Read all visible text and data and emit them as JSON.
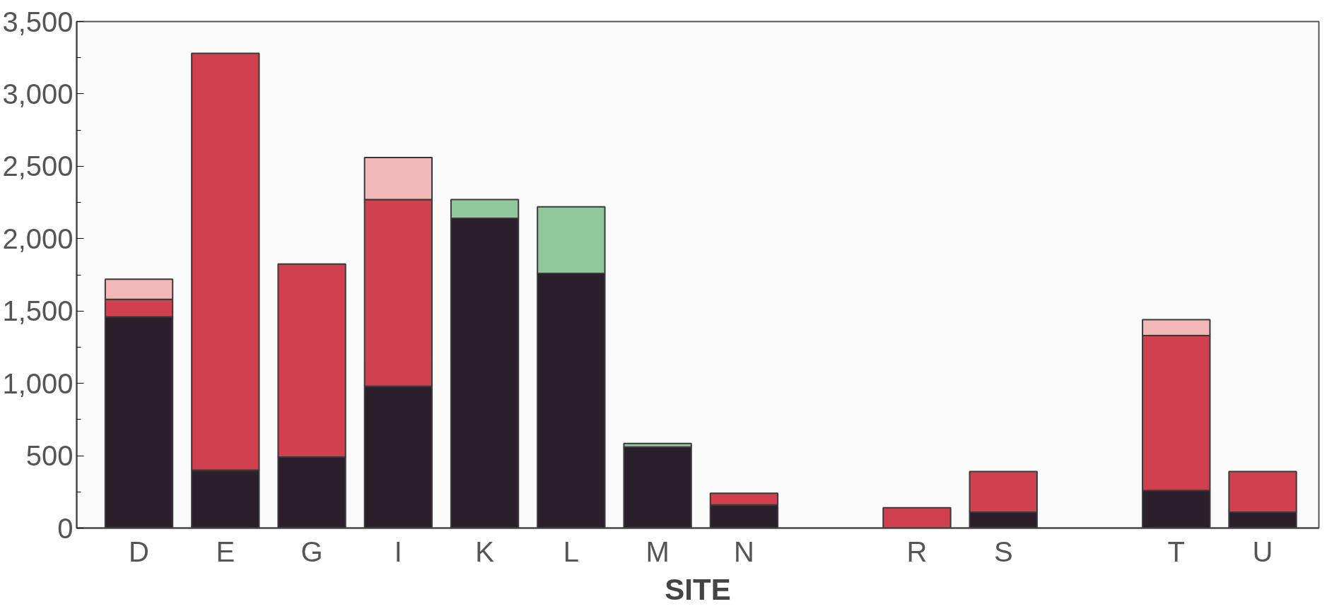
{
  "chart_data": {
    "type": "bar",
    "stacked": true,
    "xlabel": "SITE",
    "categories": [
      "D",
      "E",
      "G",
      "I",
      "K",
      "L",
      "M",
      "N",
      null,
      "R",
      "S",
      null,
      "T",
      "U"
    ],
    "series": [
      {
        "color": "#2b1f2c",
        "values": [
          1460,
          400,
          490,
          980,
          2140,
          1760,
          560,
          160,
          null,
          0,
          110,
          null,
          260,
          110
        ]
      },
      {
        "color": "#d0404f",
        "values": [
          120,
          2880,
          1335,
          1290,
          0,
          0,
          0,
          80,
          null,
          140,
          280,
          null,
          1070,
          280
        ]
      },
      {
        "color": "#f2b8b8",
        "values": [
          140,
          0,
          0,
          290,
          0,
          0,
          0,
          0,
          null,
          0,
          0,
          null,
          110,
          0
        ]
      },
      {
        "color": "#8fc89a",
        "values": [
          0,
          0,
          0,
          0,
          130,
          460,
          25,
          0,
          null,
          0,
          0,
          null,
          0,
          0
        ]
      }
    ],
    "ylim": [
      0,
      3500
    ],
    "yticks": [
      0,
      {
        "value": 500,
        "label": "500"
      },
      {
        "value": 1000,
        "label": "1,000"
      },
      {
        "value": 1500,
        "label": "1,500"
      },
      {
        "value": 2000,
        "label": "2,000"
      },
      {
        "value": 2500,
        "label": "2,500"
      },
      {
        "value": 3000,
        "label": "3,000"
      },
      {
        "value": 3500,
        "label": "3,500"
      }
    ],
    "grid": false
  }
}
